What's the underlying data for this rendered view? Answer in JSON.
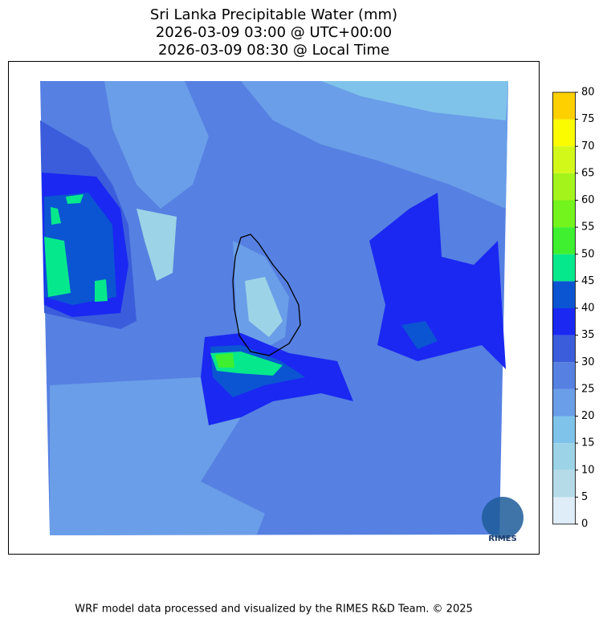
{
  "title": [
    "Sri Lanka Precipitable Water (mm)",
    "2026-03-09 03:00 @ UTC+00:00",
    "2026-03-09 08:30 @ Local Time"
  ],
  "colorbar": {
    "lim": [
      0,
      80
    ],
    "ticks": [
      0,
      5,
      10,
      15,
      20,
      25,
      30,
      35,
      40,
      45,
      50,
      55,
      60,
      65,
      70,
      75,
      80
    ],
    "colors": [
      "#deedf7",
      "#b5dbe8",
      "#9dd3e6",
      "#80c3ea",
      "#6a9ee8",
      "#5680e2",
      "#3b5ddb",
      "#1a28f2",
      "#0b55d2",
      "#06e88c",
      "#3ef030",
      "#72f41c",
      "#a4f41c",
      "#d2f81a",
      "#fcfc00",
      "#ffd000"
    ]
  },
  "logo": "RIMES",
  "footer": "WRF model data processed and visualized by the RIMES R&D Team. © 2025"
}
